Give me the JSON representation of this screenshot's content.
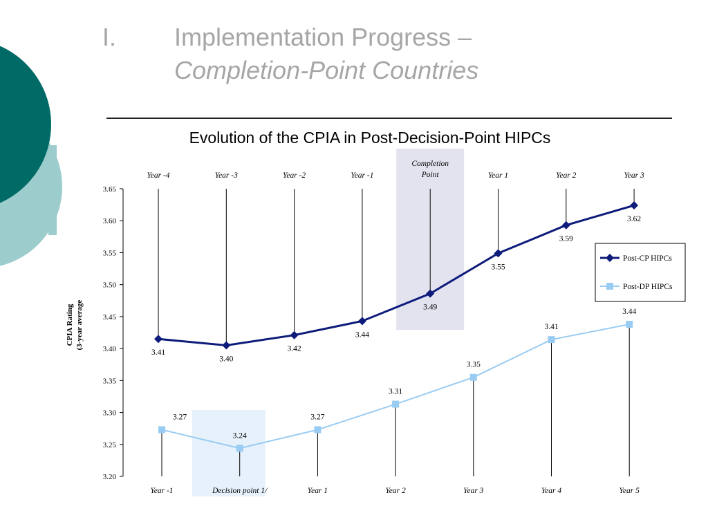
{
  "slide": {
    "title_number": "I.",
    "title_line1": "Implementation Progress –",
    "title_line2": "Completion-Point Countries"
  },
  "colors": {
    "teal_dark": "#006b66",
    "teal_light": "#9ccccc",
    "cp_series": "#0d1b7a",
    "dp_series": "#99ccf2",
    "completion_band": "#e3e3f0",
    "decision_band": "#e6f1fb",
    "title_gray": "#a6a6a6"
  },
  "chart_data": {
    "type": "line",
    "title": "Evolution of the CPIA in Post-Decision-Point HIPCs",
    "ylabel": "CPIA Rating (3-year average",
    "ylabel_lines": [
      "CPIA Rating",
      "(3-year average"
    ],
    "ylim": [
      3.2,
      3.65
    ],
    "yticks": [
      "3.65",
      "3.60",
      "3.55",
      "3.50",
      "3.45",
      "3.40",
      "3.35",
      "3.30",
      "3.25",
      "3.20"
    ],
    "top_categories": [
      "Year -4",
      "Year -3",
      "Year -2",
      "Year -1",
      "Completion Point",
      "Year 1",
      "Year 2",
      "Year 3"
    ],
    "completion_label_lines": [
      "Completion",
      "Point"
    ],
    "bottom_categories": [
      "Year -1",
      "Decision point 1/",
      "Year 1",
      "Year 2",
      "Year 3",
      "Year 4",
      "Year 5"
    ],
    "highlight_top_index": 4,
    "highlight_bottom_index": 1,
    "series": [
      {
        "name": "Post-CP HIPCs",
        "axis": "top",
        "marker": "diamond",
        "values": [
          3.415,
          3.405,
          3.421,
          3.443,
          3.486,
          3.549,
          3.593,
          3.624
        ],
        "labels": [
          "3.41",
          "3.40",
          "3.42",
          "3.44",
          "3.49",
          "3.55",
          "3.59",
          "3.62"
        ]
      },
      {
        "name": "Post-DP HIPCs",
        "axis": "bottom",
        "marker": "square",
        "values": [
          3.273,
          3.244,
          3.273,
          3.313,
          3.355,
          3.414,
          3.438
        ],
        "labels": [
          "3.27",
          "3.24",
          "3.27",
          "3.31",
          "3.35",
          "3.41",
          "3.44"
        ]
      }
    ],
    "legend_position": "right"
  }
}
